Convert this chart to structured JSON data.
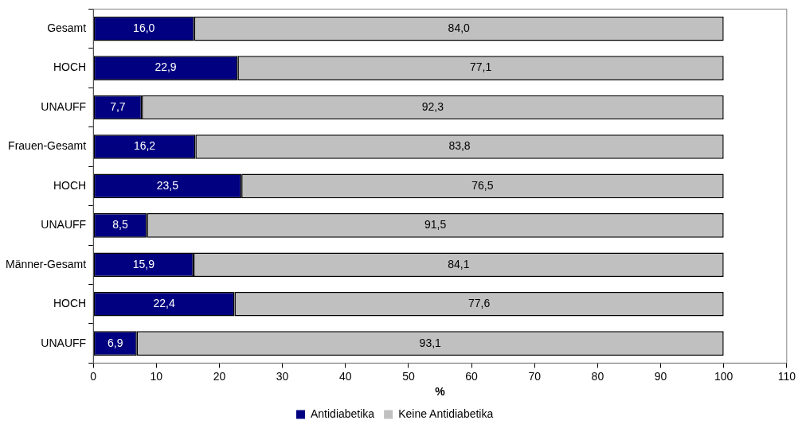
{
  "chart_data": {
    "type": "bar",
    "orientation": "horizontal",
    "stacked": true,
    "xlabel": "%",
    "categories": [
      "Gesamt",
      "HOCH",
      "UNAUFF",
      "Frauen-Gesamt",
      "HOCH",
      "UNAUFF",
      "Männer-Gesamt",
      "HOCH",
      "UNAUFF"
    ],
    "series": [
      {
        "name": "Antidiabetika",
        "color": "#000080",
        "values": [
          16.0,
          22.9,
          7.7,
          16.2,
          23.5,
          8.5,
          15.9,
          22.4,
          6.9
        ],
        "value_labels": [
          "16,0",
          "22,9",
          "7,7",
          "16,2",
          "23,5",
          "8,5",
          "15,9",
          "22,4",
          "6,9"
        ]
      },
      {
        "name": "Keine Antidiabetika",
        "color": "#c0c0c0",
        "values": [
          84.0,
          77.1,
          92.3,
          83.8,
          76.5,
          91.5,
          84.1,
          77.6,
          93.1
        ],
        "value_labels": [
          "84,0",
          "77,1",
          "92,3",
          "83,8",
          "76,5",
          "91,5",
          "84,1",
          "77,6",
          "93,1"
        ]
      }
    ],
    "xlim": [
      0,
      110
    ],
    "xticks": [
      0,
      10,
      20,
      30,
      40,
      50,
      60,
      70,
      80,
      90,
      100,
      110
    ],
    "grid": false,
    "legend": "bottom"
  }
}
